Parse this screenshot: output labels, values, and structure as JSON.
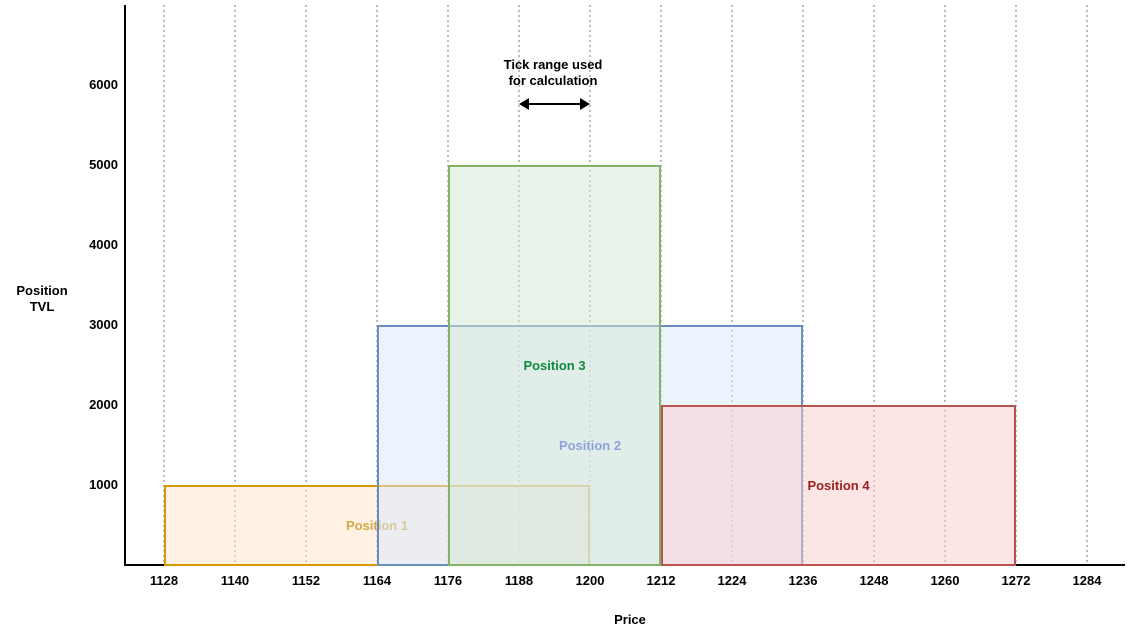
{
  "chart_data": {
    "type": "bar",
    "subtype": "overlapping-price-range-positions",
    "title": "",
    "xlabel": "Price",
    "ylabel": "Position TVL",
    "ylabel_lines": [
      "Position",
      "TVL"
    ],
    "x_ticks": [
      1128,
      1140,
      1152,
      1164,
      1176,
      1188,
      1200,
      1212,
      1224,
      1236,
      1248,
      1260,
      1272,
      1284
    ],
    "y_ticks": [
      1000,
      2000,
      3000,
      4000,
      5000,
      6000
    ],
    "xlim": [
      1121,
      1290
    ],
    "ylim": [
      0,
      7000
    ],
    "grid": "vertical-dotted",
    "grid_color": "#bcbcbc",
    "axis_color": "#000000",
    "fill_opacity": 0.5,
    "series": [
      {
        "name": "Position 1",
        "price_range": [
          1128,
          1200
        ],
        "tvl": 1000,
        "fill": "#FFE6CC",
        "stroke": "#D79B00",
        "label_color": "#D4A843"
      },
      {
        "name": "Position 2",
        "price_range": [
          1164,
          1236
        ],
        "tvl": 3000,
        "fill": "#DAE8FC",
        "stroke": "#6C8EBF",
        "label_color": "#4A5CE8"
      },
      {
        "name": "Position 3",
        "price_range": [
          1176,
          1212
        ],
        "tvl": 5000,
        "fill": "#D5E8D4",
        "stroke": "#82B366",
        "label_color": "#0E8A3C"
      },
      {
        "name": "Position 4",
        "price_range": [
          1212,
          1272
        ],
        "tvl": 2000,
        "fill": "#F8CECC",
        "stroke": "#B85450",
        "label_color": "#9E1F1F"
      }
    ],
    "annotation": {
      "lines": [
        "Tick range used",
        "for calculation"
      ],
      "arrow_range": [
        1188,
        1200
      ]
    }
  }
}
